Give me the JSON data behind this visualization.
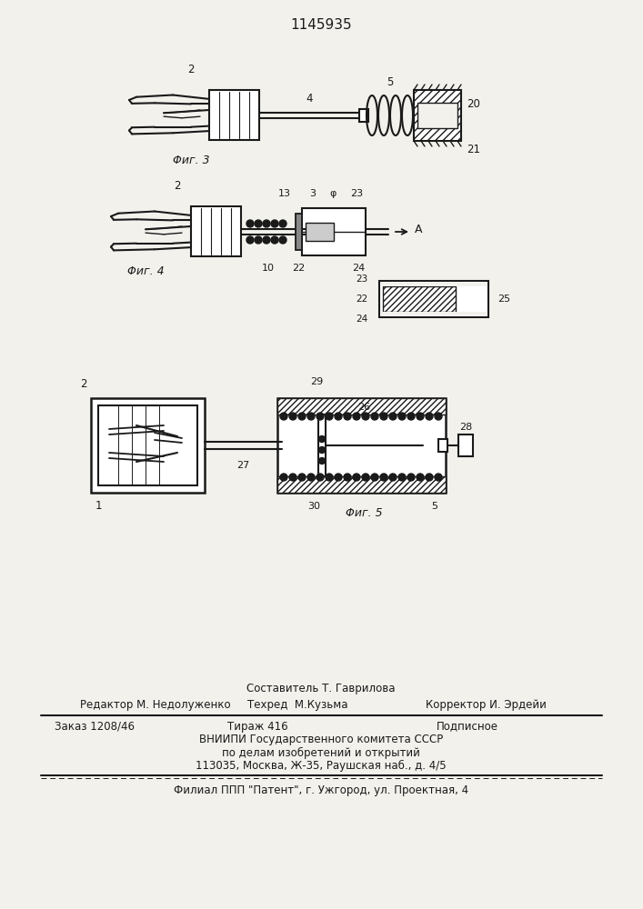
{
  "title": "1145935",
  "bg_color": "#f2f1ec",
  "line_color": "#1a1a1a",
  "fig3_caption": "Φиг. 3",
  "fig4_caption": "Φиг. 4",
  "fig5_caption": "Φиг. 5",
  "footer_composed": "Составитель Т. Гаврилова",
  "footer_editor": "Редактор М. Недолуженко",
  "footer_tech": "Техред  М.Кузьма",
  "footer_corrector": "Корректор И. Эрдейи",
  "footer_order": "Заказ 1208/46",
  "footer_print": "Тираж 416",
  "footer_sub": "Подписное",
  "footer_org1": "ВНИИПИ Государственного комитета СССР",
  "footer_org2": "по делам изобретений и открытий",
  "footer_org3": "113035, Москва, Ж-35, Раушская наб., д. 4/5",
  "footer_branch": "Филиал ППП \"Патент\", г. Ужгород, ул. Проектная, 4"
}
